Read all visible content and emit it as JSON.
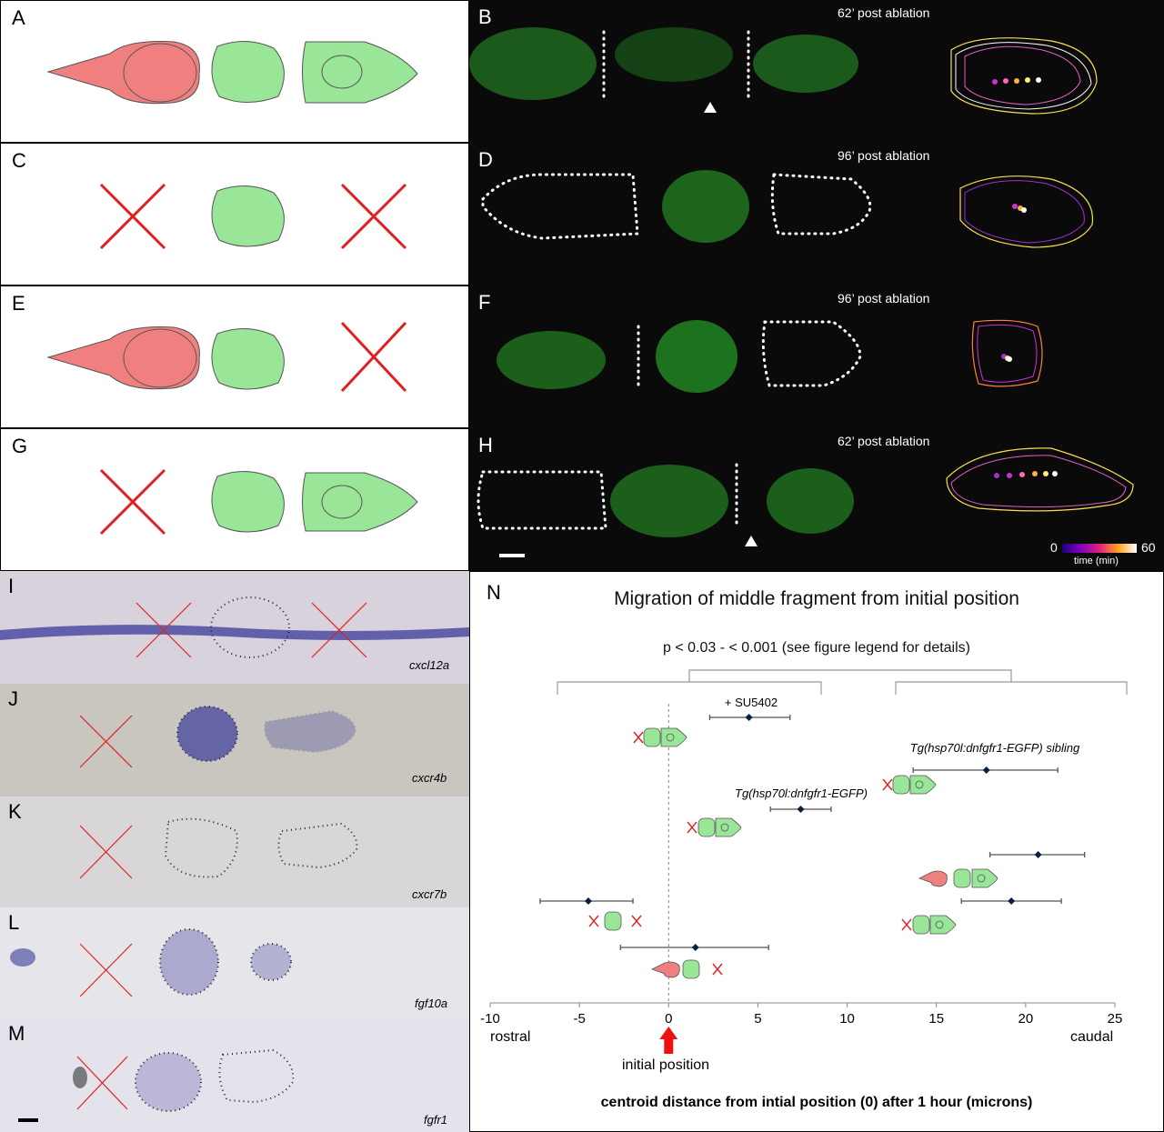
{
  "panels": {
    "A": "A",
    "B": "B",
    "C": "C",
    "D": "D",
    "E": "E",
    "F": "F",
    "G": "G",
    "H": "H",
    "I": "I",
    "J": "J",
    "K": "K",
    "L": "L",
    "M": "M",
    "N": "N"
  },
  "times": {
    "B": "62’ post ablation",
    "D": "96’ post ablation",
    "F": "96’ post ablation",
    "H": "62’ post ablation"
  },
  "colorbar": {
    "min": "0",
    "max": "60",
    "label": "time (min)"
  },
  "genes": {
    "I": "cxcl12a",
    "J": "cxcr4b",
    "K": "cxcr7b",
    "L": "fgf10a",
    "M": "fgfr1"
  },
  "colors": {
    "red_cell": "#f08080",
    "green_cell": "#99e699",
    "ablation_x": "#e02020",
    "micrograph_bg": "#0a0a0a",
    "green_signal": "#2bbf2b",
    "ish_bg": "#d8d2dc",
    "ish_stain": "#3b3a9a"
  },
  "chart_data": {
    "type": "scatter",
    "title": "Migration of middle fragment from initial position",
    "subtitle": "p < 0.03 - < 0.001 (see figure legend for details)",
    "xlabel": "centroid distance from intial position (0) after 1 hour (microns)",
    "xlim": [
      -10,
      25
    ],
    "xticks": [
      -10,
      -5,
      0,
      5,
      10,
      15,
      20,
      25
    ],
    "left_axis_note": "rostral",
    "right_axis_note": "caudal",
    "marker_label": "initial position",
    "points": [
      {
        "name": "+ SU5402",
        "x": 4.5,
        "err_low": 2.3,
        "err_high": 6.8
      },
      {
        "name": "Tg(hsp70l:dnfgfr1-EGFP) sibling",
        "x": 17.8,
        "err_low": 13.7,
        "err_high": 21.8
      },
      {
        "name": "Tg(hsp70l:dnfgfr1-EGFP)",
        "x": 7.4,
        "err_low": 5.7,
        "err_high": 9.1
      },
      {
        "name": "",
        "x": 20.7,
        "err_low": 18.0,
        "err_high": 23.3
      },
      {
        "name": "",
        "x": 19.2,
        "err_low": 16.4,
        "err_high": 22.0
      },
      {
        "name": "",
        "x": -4.5,
        "err_low": -7.2,
        "err_high": -2.0
      },
      {
        "name": "",
        "x": 1.5,
        "err_low": -2.7,
        "err_high": 5.6
      }
    ]
  }
}
